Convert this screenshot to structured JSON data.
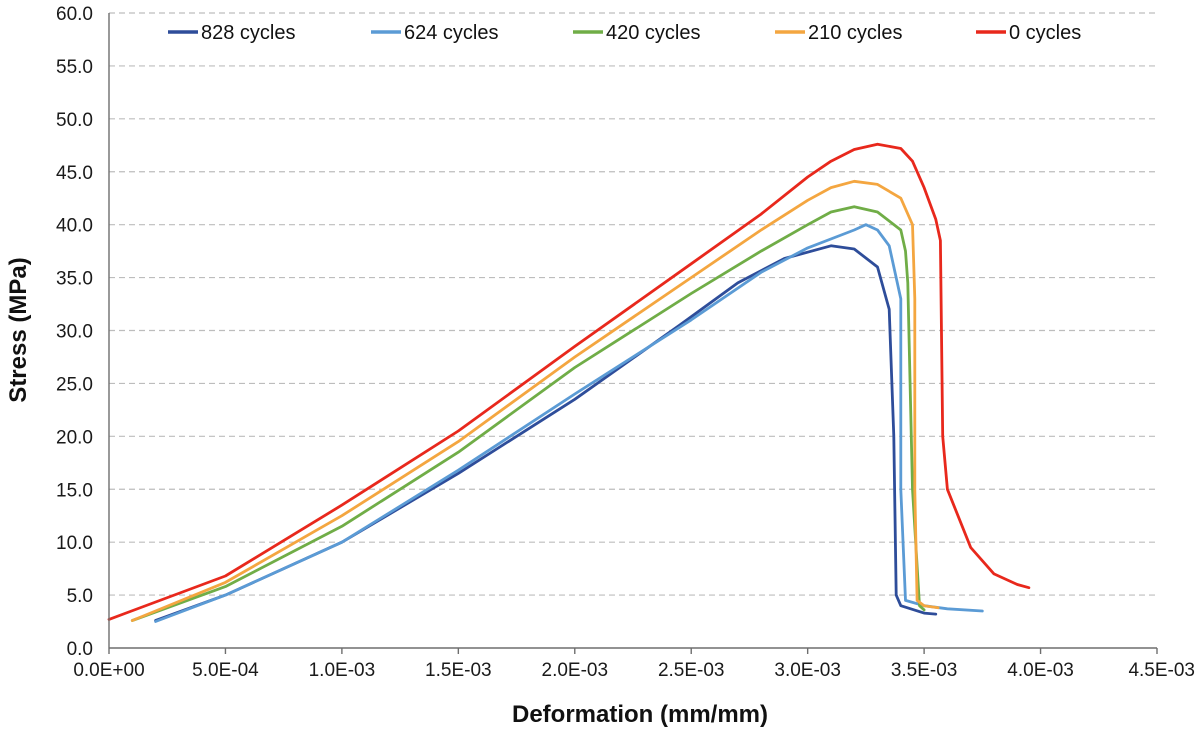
{
  "chart_data": {
    "type": "line",
    "title": "",
    "xlabel": "Deformation (mm/mm)",
    "ylabel": "Stress (MPa)",
    "xlim": [
      0,
      0.0045
    ],
    "ylim": [
      0,
      60
    ],
    "x_ticks": [
      0,
      0.0005,
      0.001,
      0.0015,
      0.002,
      0.0025,
      0.003,
      0.0035,
      0.004,
      0.0045
    ],
    "x_tick_labels": [
      "0.0E+00",
      "5.0E-04",
      "1.0E-03",
      "1.5E-03",
      "2.0E-03",
      "2.5E-03",
      "3.0E-03",
      "3.5E-03",
      "4.0E-03",
      "4.5E-03"
    ],
    "y_ticks": [
      0,
      5,
      10,
      15,
      20,
      25,
      30,
      35,
      40,
      45,
      50,
      55,
      60
    ],
    "y_tick_labels": [
      "0.0",
      "5.0",
      "10.0",
      "15.0",
      "20.0",
      "25.0",
      "30.0",
      "35.0",
      "40.0",
      "45.0",
      "50.0",
      "55.0",
      "60.0"
    ],
    "grid": "horizontal dashed",
    "legend_position": "top",
    "series": [
      {
        "name": "828 cycles",
        "color": "#2e4d9a",
        "points": [
          [
            0.0002,
            2.6
          ],
          [
            0.0005,
            5.0
          ],
          [
            0.001,
            10.0
          ],
          [
            0.0015,
            16.5
          ],
          [
            0.002,
            23.5
          ],
          [
            0.00245,
            30.5
          ],
          [
            0.0027,
            34.5
          ],
          [
            0.0029,
            36.8
          ],
          [
            0.0031,
            38.0
          ],
          [
            0.0032,
            37.7
          ],
          [
            0.0033,
            36.0
          ],
          [
            0.00335,
            32.0
          ],
          [
            0.00337,
            20.0
          ],
          [
            0.00338,
            5.0
          ],
          [
            0.0034,
            4.0
          ],
          [
            0.0035,
            3.3
          ],
          [
            0.00355,
            3.2
          ]
        ]
      },
      {
        "name": "624 cycles",
        "color": "#5b9bd5",
        "points": [
          [
            0.0002,
            2.5
          ],
          [
            0.0005,
            5.0
          ],
          [
            0.001,
            10.0
          ],
          [
            0.0015,
            16.8
          ],
          [
            0.002,
            24.0
          ],
          [
            0.0025,
            31.0
          ],
          [
            0.0028,
            35.5
          ],
          [
            0.003,
            37.8
          ],
          [
            0.0032,
            39.5
          ],
          [
            0.00325,
            40.0
          ],
          [
            0.0033,
            39.5
          ],
          [
            0.00335,
            38.0
          ],
          [
            0.0034,
            33.0
          ],
          [
            0.0034,
            15.0
          ],
          [
            0.00342,
            4.5
          ],
          [
            0.0035,
            4.0
          ],
          [
            0.0036,
            3.7
          ],
          [
            0.00375,
            3.5
          ]
        ]
      },
      {
        "name": "420 cycles",
        "color": "#70ad47",
        "points": [
          [
            0.0001,
            2.6
          ],
          [
            0.0005,
            5.8
          ],
          [
            0.001,
            11.5
          ],
          [
            0.0015,
            18.5
          ],
          [
            0.002,
            26.5
          ],
          [
            0.0025,
            33.5
          ],
          [
            0.0028,
            37.5
          ],
          [
            0.003,
            40.0
          ],
          [
            0.0031,
            41.2
          ],
          [
            0.0032,
            41.7
          ],
          [
            0.0033,
            41.2
          ],
          [
            0.0034,
            39.5
          ],
          [
            0.00342,
            37.5
          ],
          [
            0.00343,
            34.5
          ],
          [
            0.00345,
            15.0
          ],
          [
            0.00348,
            4.0
          ],
          [
            0.0035,
            3.6
          ]
        ]
      },
      {
        "name": "210 cycles",
        "color": "#f4a640",
        "points": [
          [
            0.0001,
            2.6
          ],
          [
            0.0005,
            6.2
          ],
          [
            0.001,
            12.5
          ],
          [
            0.0015,
            19.5
          ],
          [
            0.002,
            27.5
          ],
          [
            0.0025,
            35.0
          ],
          [
            0.0028,
            39.5
          ],
          [
            0.003,
            42.3
          ],
          [
            0.0031,
            43.5
          ],
          [
            0.0032,
            44.1
          ],
          [
            0.0033,
            43.8
          ],
          [
            0.0034,
            42.5
          ],
          [
            0.00345,
            40.0
          ],
          [
            0.00346,
            33.0
          ],
          [
            0.00346,
            15.0
          ],
          [
            0.00347,
            4.5
          ],
          [
            0.0035,
            4.0
          ],
          [
            0.00356,
            3.8
          ]
        ]
      },
      {
        "name": "0 cycles",
        "color": "#e8281c",
        "points": [
          [
            0,
            2.7
          ],
          [
            0.0005,
            6.8
          ],
          [
            0.001,
            13.5
          ],
          [
            0.0015,
            20.5
          ],
          [
            0.002,
            28.5
          ],
          [
            0.0025,
            36.3
          ],
          [
            0.0028,
            41.0
          ],
          [
            0.003,
            44.5
          ],
          [
            0.0031,
            46.0
          ],
          [
            0.0032,
            47.1
          ],
          [
            0.0033,
            47.6
          ],
          [
            0.0034,
            47.2
          ],
          [
            0.00345,
            46.0
          ],
          [
            0.0035,
            43.5
          ],
          [
            0.00355,
            40.5
          ],
          [
            0.00357,
            38.5
          ],
          [
            0.00358,
            20.0
          ],
          [
            0.0036,
            15.0
          ],
          [
            0.0037,
            9.5
          ],
          [
            0.0038,
            7.0
          ],
          [
            0.0039,
            6.0
          ],
          [
            0.00395,
            5.7
          ]
        ]
      }
    ]
  }
}
